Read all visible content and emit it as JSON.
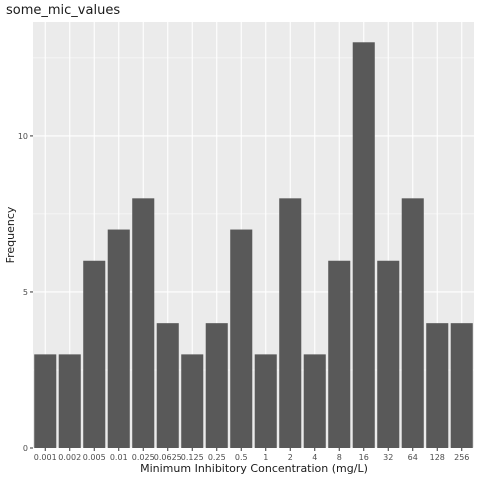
{
  "chart_data": {
    "type": "bar",
    "title": "some_mic_values",
    "xlabel": "Minimum Inhibitory Concentration (mg/L)",
    "ylabel": "Frequency",
    "categories": [
      "0.001",
      "0.002",
      "0.005",
      "0.01",
      "0.025",
      "0.0625",
      "0.125",
      "0.25",
      "0.5",
      "1",
      "2",
      "4",
      "8",
      "16",
      "32",
      "64",
      "128",
      "256"
    ],
    "values": [
      3,
      3,
      6,
      7,
      8,
      4,
      3,
      4,
      7,
      3,
      8,
      3,
      6,
      13,
      6,
      8,
      4,
      4
    ],
    "ylim": [
      0,
      13.65
    ],
    "yticks": [
      0,
      5,
      10
    ],
    "grid": true,
    "panel_color": "#ebebeb",
    "bar_color": "#595959",
    "legend": "none"
  }
}
